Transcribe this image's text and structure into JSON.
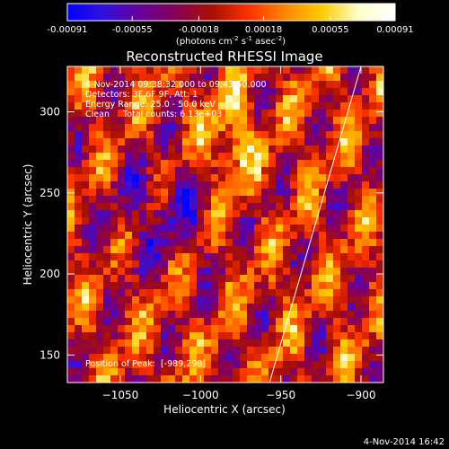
{
  "chart_data": {
    "type": "heatmap",
    "title": "Reconstructed RHESSI Image",
    "xlabel": "Heliocentric X (arcsec)",
    "ylabel": "Heliocentric Y (arcsec)",
    "x_ticks": [
      -1050,
      -1000,
      -950,
      -900
    ],
    "y_ticks": [
      150,
      200,
      250,
      300
    ],
    "x_tick_labels": [
      "−1050",
      "−1000",
      "−950",
      "−900"
    ],
    "y_tick_labels": [
      "150",
      "200",
      "250",
      "300"
    ],
    "xlim": [
      -1083,
      -886
    ],
    "ylim": [
      133,
      328
    ],
    "colorbar": {
      "ticks": [
        -0.00091,
        -0.00055,
        -0.00018,
        0.00018,
        0.00055,
        0.00091
      ],
      "tick_labels": [
        "-0.00091",
        "-0.00055",
        "-0.00018",
        "0.00018",
        "0.00055",
        "0.00091"
      ],
      "range": [
        -0.00091,
        0.00091
      ],
      "unit_label_parts": [
        "(photons cm",
        "-2",
        " s",
        "-1",
        " asec",
        "-2",
        ")"
      ],
      "colormap": [
        "#0000ff",
        "#3311dd",
        "#660099",
        "#880055",
        "#aa1100",
        "#ff3300",
        "#ff8800",
        "#ffcc00",
        "#ffffcc",
        "#ffffff"
      ]
    },
    "annotations": [
      "4-Nov-2014 09:38:32.000 to 09:43:50.000",
      "Detectors: 3F 6F 9F, Att: 1",
      "Energy Range: 25.0 - 50.0 keV",
      "Clean     Total counts: 6.13e+03"
    ],
    "peak_label": "Position of Peak:  [-989,298]",
    "limb_line": [
      [
        -957,
        133
      ],
      [
        -900,
        328
      ]
    ]
  },
  "footer": {
    "timestamp": "4-Nov-2014 16:42"
  }
}
